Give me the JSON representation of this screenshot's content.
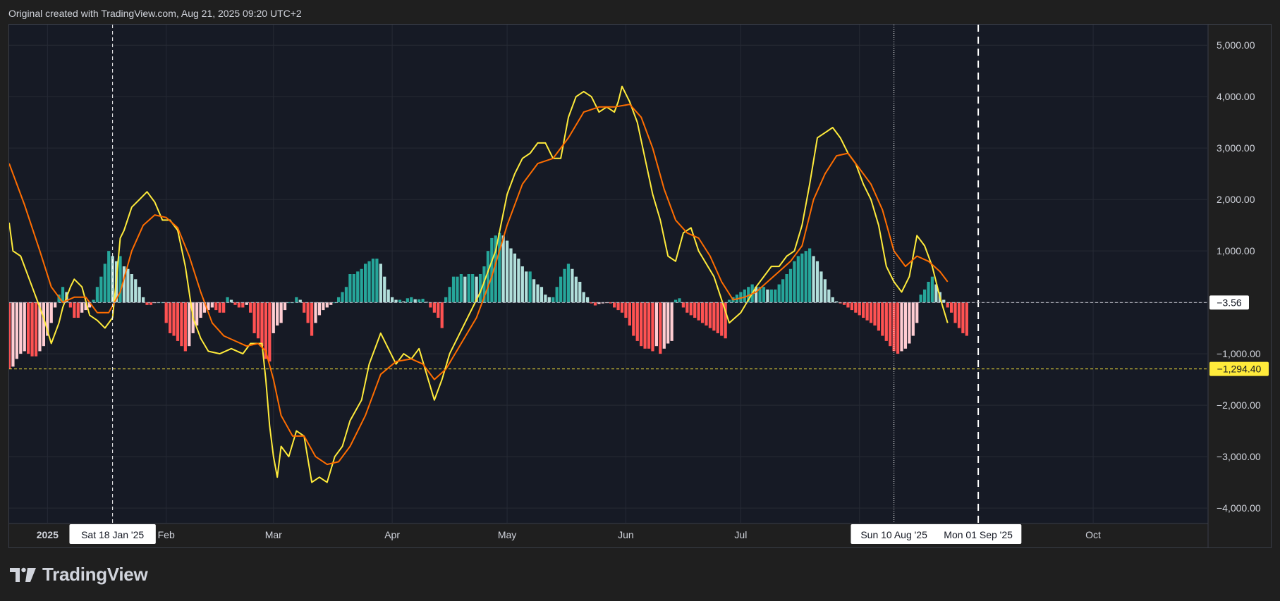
{
  "caption": "Original created with TradingView.com, Aug 21, 2025 09:20 UTC+2",
  "brand": {
    "name": "TradingView"
  },
  "colors": {
    "background": "#1f1f1f",
    "pane": "#161a25",
    "grid": "#262a35",
    "macd_line": "#ffeb3b",
    "signal_line": "#ff6d00",
    "hist_pos_strong": "#26a69a",
    "hist_pos_weak": "#b2dfdb",
    "hist_neg_strong": "#ff5252",
    "hist_neg_weak": "#ffcdd2",
    "label_yellow": "#ffeb3b"
  },
  "chart_data": {
    "type": "line",
    "title": "",
    "xlabel": "",
    "ylabel": "",
    "ylim": [
      -4300,
      5400
    ],
    "y_ticks": [
      5000,
      4000,
      3000,
      2000,
      1000,
      -1000,
      -2000,
      -3000,
      -4000
    ],
    "y_tick_labels": [
      "5,000.00",
      "4,000.00",
      "3,000.00",
      "2,000.00",
      "1,000.00",
      "−1,000.00",
      "−2,000.00",
      "−3,000.00",
      "−4,000.00"
    ],
    "x_range": [
      "2024-12-22",
      "2025-10-31"
    ],
    "x_tick_labels": [
      {
        "date": "2025-01-01",
        "label": "2025",
        "bold": true
      },
      {
        "date": "2025-02-01",
        "label": "Feb"
      },
      {
        "date": "2025-03-01",
        "label": "Mar"
      },
      {
        "date": "2025-04-01",
        "label": "Apr"
      },
      {
        "date": "2025-05-01",
        "label": "May"
      },
      {
        "date": "2025-06-01",
        "label": "Jun"
      },
      {
        "date": "2025-07-01",
        "label": "Jul"
      },
      {
        "date": "2025-10-01",
        "label": "Oct"
      }
    ],
    "crosshair_labels": [
      {
        "date": "2025-01-18",
        "label": "Sat 18 Jan '25",
        "style": "dashed-thin"
      },
      {
        "date": "2025-08-10",
        "label": "Sun 10 Aug '25",
        "style": "dotted"
      },
      {
        "date": "2025-09-01",
        "label": "Mon 01 Sep '25",
        "style": "dashed-thick"
      }
    ],
    "price_labels": [
      {
        "value": -3.56,
        "label": "−3.56",
        "style": "white"
      },
      {
        "value": -1294.4,
        "label": "−1,294.40",
        "style": "yellow"
      }
    ],
    "series": [
      {
        "role": "macd",
        "color": "#ffeb3b",
        "points": [
          [
            "2024-12-22",
            1550
          ],
          [
            "2024-12-23",
            1000
          ],
          [
            "2024-12-25",
            900
          ],
          [
            "2024-12-28",
            300
          ],
          [
            "2024-12-31",
            -300
          ],
          [
            "2025-01-02",
            -800
          ],
          [
            "2025-01-04",
            -400
          ],
          [
            "2025-01-05",
            -100
          ],
          [
            "2025-01-07",
            300
          ],
          [
            "2025-01-08",
            450
          ],
          [
            "2025-01-10",
            300
          ],
          [
            "2025-01-12",
            -250
          ],
          [
            "2025-01-14",
            -350
          ],
          [
            "2025-01-16",
            -500
          ],
          [
            "2025-01-18",
            -300
          ],
          [
            "2025-01-19",
            450
          ],
          [
            "2025-01-20",
            1250
          ],
          [
            "2025-01-21",
            1400
          ],
          [
            "2025-01-23",
            1850
          ],
          [
            "2025-01-25",
            2000
          ],
          [
            "2025-01-27",
            2150
          ],
          [
            "2025-01-29",
            1950
          ],
          [
            "2025-01-31",
            1600
          ],
          [
            "2025-02-02",
            1600
          ],
          [
            "2025-02-04",
            1400
          ],
          [
            "2025-02-06",
            700
          ],
          [
            "2025-02-08",
            -300
          ],
          [
            "2025-02-10",
            -700
          ],
          [
            "2025-02-12",
            -950
          ],
          [
            "2025-02-15",
            -1000
          ],
          [
            "2025-02-18",
            -900
          ],
          [
            "2025-02-21",
            -1000
          ],
          [
            "2025-02-23",
            -800
          ],
          [
            "2025-02-26",
            -800
          ],
          [
            "2025-02-27",
            -1500
          ],
          [
            "2025-02-28",
            -2400
          ],
          [
            "2025-03-01",
            -3000
          ],
          [
            "2025-03-02",
            -3400
          ],
          [
            "2025-03-03",
            -2800
          ],
          [
            "2025-03-05",
            -3000
          ],
          [
            "2025-03-07",
            -2500
          ],
          [
            "2025-03-09",
            -2600
          ],
          [
            "2025-03-11",
            -3500
          ],
          [
            "2025-03-13",
            -3400
          ],
          [
            "2025-03-15",
            -3500
          ],
          [
            "2025-03-17",
            -3000
          ],
          [
            "2025-03-19",
            -2800
          ],
          [
            "2025-03-21",
            -2300
          ],
          [
            "2025-03-24",
            -1900
          ],
          [
            "2025-03-26",
            -1200
          ],
          [
            "2025-03-28",
            -800
          ],
          [
            "2025-03-29",
            -600
          ],
          [
            "2025-03-31",
            -900
          ],
          [
            "2025-04-02",
            -1200
          ],
          [
            "2025-04-04",
            -1000
          ],
          [
            "2025-04-06",
            -1100
          ],
          [
            "2025-04-08",
            -900
          ],
          [
            "2025-04-10",
            -1400
          ],
          [
            "2025-04-12",
            -1900
          ],
          [
            "2025-04-14",
            -1500
          ],
          [
            "2025-04-16",
            -1000
          ],
          [
            "2025-04-20",
            -400
          ],
          [
            "2025-04-24",
            200
          ],
          [
            "2025-04-28",
            1000
          ],
          [
            "2025-05-01",
            2100
          ],
          [
            "2025-05-03",
            2500
          ],
          [
            "2025-05-05",
            2800
          ],
          [
            "2025-05-07",
            2900
          ],
          [
            "2025-05-09",
            3100
          ],
          [
            "2025-05-11",
            3100
          ],
          [
            "2025-05-13",
            2800
          ],
          [
            "2025-05-15",
            2800
          ],
          [
            "2025-05-17",
            3600
          ],
          [
            "2025-05-19",
            4000
          ],
          [
            "2025-05-21",
            4100
          ],
          [
            "2025-05-23",
            4000
          ],
          [
            "2025-05-25",
            3700
          ],
          [
            "2025-05-27",
            3800
          ],
          [
            "2025-05-29",
            3700
          ],
          [
            "2025-05-30",
            3900
          ],
          [
            "2025-05-31",
            4200
          ],
          [
            "2025-06-02",
            3900
          ],
          [
            "2025-06-04",
            3500
          ],
          [
            "2025-06-06",
            2800
          ],
          [
            "2025-06-08",
            2100
          ],
          [
            "2025-06-10",
            1600
          ],
          [
            "2025-06-12",
            900
          ],
          [
            "2025-06-14",
            800
          ],
          [
            "2025-06-16",
            1350
          ],
          [
            "2025-06-18",
            1450
          ],
          [
            "2025-06-20",
            1000
          ],
          [
            "2025-06-24",
            500
          ],
          [
            "2025-06-28",
            -400
          ],
          [
            "2025-07-01",
            -200
          ],
          [
            "2025-07-05",
            300
          ],
          [
            "2025-07-07",
            500
          ],
          [
            "2025-07-09",
            700
          ],
          [
            "2025-07-11",
            700
          ],
          [
            "2025-07-13",
            900
          ],
          [
            "2025-07-15",
            1000
          ],
          [
            "2025-07-17",
            1500
          ],
          [
            "2025-07-19",
            2300
          ],
          [
            "2025-07-21",
            3200
          ],
          [
            "2025-07-23",
            3300
          ],
          [
            "2025-07-25",
            3400
          ],
          [
            "2025-07-27",
            3200
          ],
          [
            "2025-07-29",
            2900
          ],
          [
            "2025-07-31",
            2700
          ],
          [
            "2025-08-02",
            2300
          ],
          [
            "2025-08-04",
            2000
          ],
          [
            "2025-08-06",
            1500
          ],
          [
            "2025-08-08",
            700
          ],
          [
            "2025-08-10",
            400
          ],
          [
            "2025-08-12",
            200
          ],
          [
            "2025-08-14",
            500
          ],
          [
            "2025-08-16",
            1300
          ],
          [
            "2025-08-18",
            1100
          ],
          [
            "2025-08-20",
            700
          ],
          [
            "2025-08-22",
            100
          ],
          [
            "2025-08-24",
            -400
          ]
        ]
      },
      {
        "role": "signal",
        "color": "#ff6d00",
        "points": [
          [
            "2024-12-22",
            2700
          ],
          [
            "2024-12-26",
            1900
          ],
          [
            "2024-12-30",
            1000
          ],
          [
            "2025-01-02",
            300
          ],
          [
            "2025-01-05",
            0
          ],
          [
            "2025-01-08",
            100
          ],
          [
            "2025-01-11",
            100
          ],
          [
            "2025-01-14",
            -200
          ],
          [
            "2025-01-17",
            -200
          ],
          [
            "2025-01-20",
            200
          ],
          [
            "2025-01-23",
            1000
          ],
          [
            "2025-01-26",
            1500
          ],
          [
            "2025-01-29",
            1700
          ],
          [
            "2025-02-01",
            1650
          ],
          [
            "2025-02-04",
            1450
          ],
          [
            "2025-02-07",
            900
          ],
          [
            "2025-02-10",
            200
          ],
          [
            "2025-02-13",
            -400
          ],
          [
            "2025-02-16",
            -650
          ],
          [
            "2025-02-19",
            -750
          ],
          [
            "2025-02-22",
            -850
          ],
          [
            "2025-02-25",
            -800
          ],
          [
            "2025-02-27",
            -950
          ],
          [
            "2025-03-01",
            -1500
          ],
          [
            "2025-03-03",
            -2200
          ],
          [
            "2025-03-06",
            -2600
          ],
          [
            "2025-03-09",
            -2600
          ],
          [
            "2025-03-12",
            -3000
          ],
          [
            "2025-03-15",
            -3150
          ],
          [
            "2025-03-18",
            -3100
          ],
          [
            "2025-03-21",
            -2800
          ],
          [
            "2025-03-25",
            -2200
          ],
          [
            "2025-03-29",
            -1400
          ],
          [
            "2025-04-02",
            -1150
          ],
          [
            "2025-04-06",
            -1100
          ],
          [
            "2025-04-09",
            -1200
          ],
          [
            "2025-04-12",
            -1500
          ],
          [
            "2025-04-15",
            -1300
          ],
          [
            "2025-04-19",
            -800
          ],
          [
            "2025-04-23",
            -300
          ],
          [
            "2025-04-27",
            500
          ],
          [
            "2025-05-01",
            1500
          ],
          [
            "2025-05-05",
            2300
          ],
          [
            "2025-05-09",
            2700
          ],
          [
            "2025-05-13",
            2800
          ],
          [
            "2025-05-17",
            3200
          ],
          [
            "2025-05-21",
            3700
          ],
          [
            "2025-05-25",
            3800
          ],
          [
            "2025-05-29",
            3800
          ],
          [
            "2025-06-02",
            3850
          ],
          [
            "2025-06-05",
            3600
          ],
          [
            "2025-06-08",
            3000
          ],
          [
            "2025-06-11",
            2200
          ],
          [
            "2025-06-14",
            1600
          ],
          [
            "2025-06-17",
            1350
          ],
          [
            "2025-06-20",
            1250
          ],
          [
            "2025-06-23",
            900
          ],
          [
            "2025-06-26",
            400
          ],
          [
            "2025-06-29",
            50
          ],
          [
            "2025-07-02",
            100
          ],
          [
            "2025-07-05",
            200
          ],
          [
            "2025-07-08",
            400
          ],
          [
            "2025-07-11",
            600
          ],
          [
            "2025-07-14",
            800
          ],
          [
            "2025-07-17",
            1100
          ],
          [
            "2025-07-20",
            2000
          ],
          [
            "2025-07-23",
            2500
          ],
          [
            "2025-07-26",
            2850
          ],
          [
            "2025-07-29",
            2900
          ],
          [
            "2025-08-01",
            2600
          ],
          [
            "2025-08-04",
            2300
          ],
          [
            "2025-08-07",
            1800
          ],
          [
            "2025-08-10",
            1000
          ],
          [
            "2025-08-13",
            700
          ],
          [
            "2025-08-16",
            900
          ],
          [
            "2025-08-19",
            800
          ],
          [
            "2025-08-22",
            600
          ],
          [
            "2025-08-24",
            400
          ]
        ]
      }
    ],
    "histogram": {
      "role": "macd-histogram",
      "start": "2024-12-22",
      "step_days": 1,
      "values": [
        -1300,
        -1250,
        -1100,
        -1000,
        -950,
        -1000,
        -1050,
        -1050,
        -950,
        -850,
        -650,
        -400,
        -100,
        150,
        300,
        200,
        -100,
        -300,
        -300,
        -200,
        -150,
        -100,
        50,
        300,
        500,
        750,
        1000,
        900,
        800,
        900,
        700,
        650,
        550,
        450,
        300,
        100,
        -50,
        -50,
        -10,
        0,
        0,
        -400,
        -600,
        -650,
        -750,
        -850,
        -950,
        -850,
        -600,
        -450,
        -300,
        -200,
        -150,
        -100,
        -150,
        -200,
        -200,
        100,
        50,
        -50,
        -100,
        -100,
        -50,
        -200,
        -600,
        -700,
        -850,
        -1100,
        -1150,
        -600,
        -450,
        -400,
        -150,
        0,
        0,
        100,
        50,
        -200,
        -400,
        -650,
        -400,
        -250,
        -150,
        -100,
        -50,
        0,
        100,
        200,
        300,
        550,
        550,
        600,
        650,
        750,
        800,
        850,
        850,
        750,
        500,
        250,
        100,
        50,
        50,
        20,
        80,
        100,
        60,
        60,
        70,
        10,
        -100,
        -200,
        -300,
        -500,
        100,
        300,
        500,
        500,
        550,
        500,
        550,
        550,
        500,
        550,
        700,
        1000,
        1250,
        1300,
        1350,
        1300,
        1200,
        1050,
        950,
        850,
        700,
        600,
        600,
        450,
        350,
        300,
        150,
        100,
        100,
        300,
        500,
        650,
        750,
        650,
        500,
        400,
        200,
        100,
        -20,
        -60,
        -30,
        -20,
        -10,
        -20,
        -100,
        -150,
        -200,
        -300,
        -450,
        -650,
        -750,
        -850,
        -900,
        -900,
        -950,
        -850,
        -1000,
        -900,
        -800,
        -750,
        50,
        80,
        -100,
        -200,
        -250,
        -300,
        -350,
        -400,
        -450,
        -500,
        -550,
        -600,
        -650,
        -700,
        50,
        100,
        150,
        200,
        250,
        300,
        350,
        300,
        300,
        300,
        250,
        250,
        250,
        350,
        450,
        550,
        650,
        800,
        900,
        950,
        1000,
        1050,
        900,
        800,
        600,
        450,
        250,
        100,
        20,
        -20,
        -50,
        -100,
        -150,
        -200,
        -250,
        -300,
        -350,
        -400,
        -450,
        -550,
        -650,
        -750,
        -850,
        -950,
        -1000,
        -950,
        -900,
        -800,
        -650,
        -400,
        150,
        250,
        400,
        500,
        350,
        200,
        50,
        -100,
        -200,
        -400,
        -500,
        -600,
        -650
      ]
    }
  }
}
